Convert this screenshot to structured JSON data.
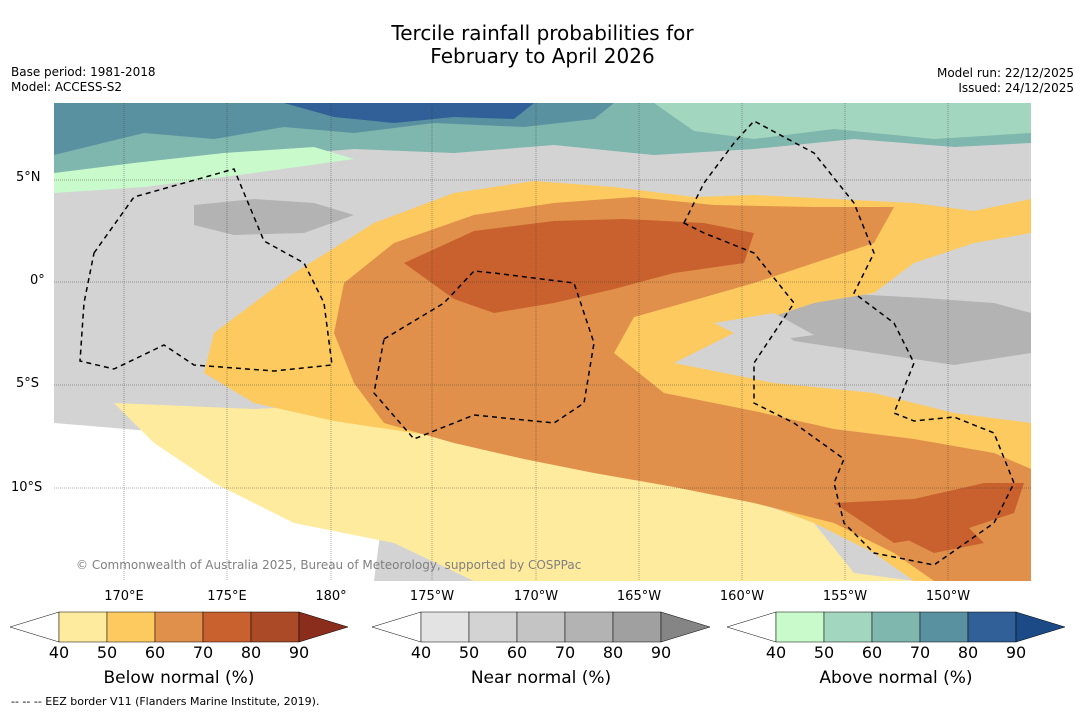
{
  "title_line1": "Tercile rainfall probabilities for",
  "title_line2": "February to April 2026",
  "base_period": "Base period: 1981-2018",
  "model": "Model: ACCESS-S2",
  "model_run": "Model run: 22/12/2025",
  "issued": "Issued: 24/12/2025",
  "lat_labels": [
    "5°N",
    "0°",
    "5°S",
    "10°S"
  ],
  "lon_labels": [
    "170°E",
    "175°E",
    "180°",
    "175°W",
    "170°W",
    "165°W",
    "160°W",
    "155°W",
    "150°W"
  ],
  "copyright": "© Commonwealth of Australia 2025, Bureau of Meteorology, supported by COSPPac",
  "colorbars": [
    {
      "title": "Below normal (%)",
      "ticks": [
        "40",
        "50",
        "60",
        "70",
        "80",
        "90"
      ],
      "colors": [
        "#ffffff",
        "#ffeb9e",
        "#fdca60",
        "#e0904a",
        "#c9612e",
        "#aa4a26",
        "#8b2d1c"
      ]
    },
    {
      "title": "Near normal (%)",
      "ticks": [
        "40",
        "50",
        "60",
        "70",
        "80",
        "90"
      ],
      "colors": [
        "#ffffff",
        "#e3e3e3",
        "#d3d3d3",
        "#c4c4c4",
        "#b3b3b3",
        "#a0a0a0",
        "#858585"
      ]
    },
    {
      "title": "Above normal (%)",
      "ticks": [
        "40",
        "50",
        "60",
        "70",
        "80",
        "90"
      ],
      "colors": [
        "#ffffff",
        "#c9facb",
        "#a2d6bf",
        "#7fb6ad",
        "#5a91a1",
        "#306097",
        "#1b4a87"
      ]
    }
  ],
  "footnote": "--  --  -- EEZ border V11 (Flanders Marine Institute, 2019)."
}
